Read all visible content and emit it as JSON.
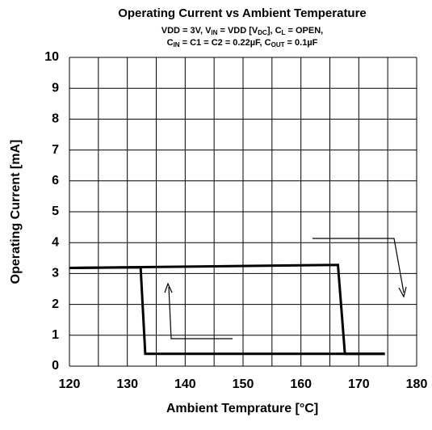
{
  "chart_data": {
    "type": "line",
    "title": "Operating Current vs Ambient Temperature",
    "subtitle_lines": [
      [
        "VDD = 3V, V",
        "IN",
        " = VDD [V",
        "DC",
        "], C",
        "L",
        " = OPEN,"
      ],
      [
        "C",
        "IN",
        " = C1 = C2 = 0.22µF, C",
        "OUT",
        " = 0.1µF"
      ]
    ],
    "xlabel": "Ambient Temprature [°C]",
    "ylabel": "Operating Current [mA]",
    "xlim": [
      120,
      180
    ],
    "ylim": [
      0,
      10
    ],
    "xticks": [
      120,
      130,
      140,
      150,
      160,
      170,
      180
    ],
    "x_minor_ticks": [
      125,
      135,
      145,
      155,
      165,
      175
    ],
    "yticks": [
      0,
      1,
      2,
      3,
      4,
      5,
      6,
      7,
      8,
      9,
      10
    ],
    "grid": true,
    "series": [
      {
        "color": "#000000",
        "x": [
          120,
          166.4,
          167.6,
          174.5
        ],
        "values": [
          3.18,
          3.28,
          0.4,
          0.4
        ]
      },
      {
        "color": "#000000",
        "x": [
          174.5,
          133.1,
          132.3,
          120
        ],
        "values": [
          0.4,
          0.4,
          3.2,
          3.18
        ]
      }
    ]
  }
}
